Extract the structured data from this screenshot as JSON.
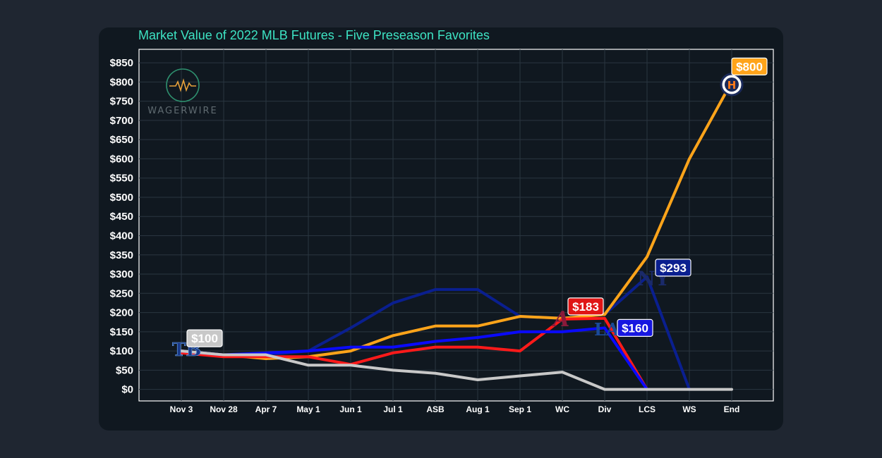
{
  "chart_data": {
    "type": "line",
    "title": "Market Value of 2022 MLB Futures - Five Preseason Favorites",
    "categories": [
      "Nov 3",
      "Nov 28",
      "Apr 7",
      "May 1",
      "Jun 1",
      "Jul 1",
      "ASB",
      "Aug 1",
      "Sep 1",
      "WC",
      "Div",
      "LCS",
      "WS",
      "End"
    ],
    "y_ticks": [
      0,
      50,
      100,
      150,
      200,
      250,
      300,
      350,
      400,
      450,
      500,
      550,
      600,
      650,
      700,
      750,
      800,
      850
    ],
    "ylim": [
      -30,
      885
    ],
    "y_prefix": "$",
    "grid": true,
    "series": [
      {
        "name": "Yankees",
        "color": "#0a1f8f",
        "values": [
          100,
          90,
          90,
          100,
          160,
          225,
          260,
          260,
          190,
          185,
          195,
          293,
          0,
          null
        ]
      },
      {
        "name": "Dodgers",
        "color": "#0a0aff",
        "values": [
          100,
          90,
          95,
          100,
          110,
          110,
          125,
          135,
          150,
          150,
          160,
          0,
          null,
          null
        ]
      },
      {
        "name": "Braves",
        "color": "#ff1a1a",
        "values": [
          95,
          85,
          85,
          85,
          65,
          95,
          110,
          110,
          100,
          183,
          185,
          0,
          null,
          null
        ]
      },
      {
        "name": "Astros",
        "color": "#ffa41a",
        "values": [
          100,
          90,
          80,
          85,
          100,
          140,
          165,
          165,
          190,
          185,
          195,
          345,
          600,
          800
        ]
      },
      {
        "name": "Rays",
        "color": "#c8c8c8",
        "values": [
          100,
          90,
          90,
          63,
          63,
          50,
          42,
          25,
          35,
          45,
          0,
          0,
          0,
          0
        ]
      }
    ],
    "annotations": [
      {
        "text": "$100",
        "series": "Rays",
        "category": "Nov 3",
        "value": 100,
        "bg": "#c8c8c8",
        "border": "#ffffff"
      },
      {
        "text": "$183",
        "series": "Braves",
        "category": "WC",
        "value": 183,
        "bg": "#e01515",
        "border": "#ffffff"
      },
      {
        "text": "$160",
        "series": "Dodgers",
        "category": "Div",
        "value": 160,
        "bg": "#1616e0",
        "border": "#ffffff"
      },
      {
        "text": "$293",
        "series": "Yankees",
        "category": "LCS",
        "value": 293,
        "bg": "#0a1f8f",
        "border": "#ffffff"
      },
      {
        "text": "$800",
        "series": "Astros",
        "category": "End",
        "value": 800,
        "bg": "#ffa41a",
        "border": "#ffffff"
      }
    ]
  },
  "branding": {
    "name": "WAGERWIRE",
    "icon": "pulse-circle-icon",
    "colors": {
      "ring": "#2e8f6e",
      "pulse": "#e8a13a"
    }
  },
  "colors": {
    "page_bg": "#1f2631",
    "card_bg": "#101820",
    "plot_bg": "#101820",
    "plot_border": "#ffffff",
    "grid": "#2a3640",
    "title": "#3de3c3"
  }
}
